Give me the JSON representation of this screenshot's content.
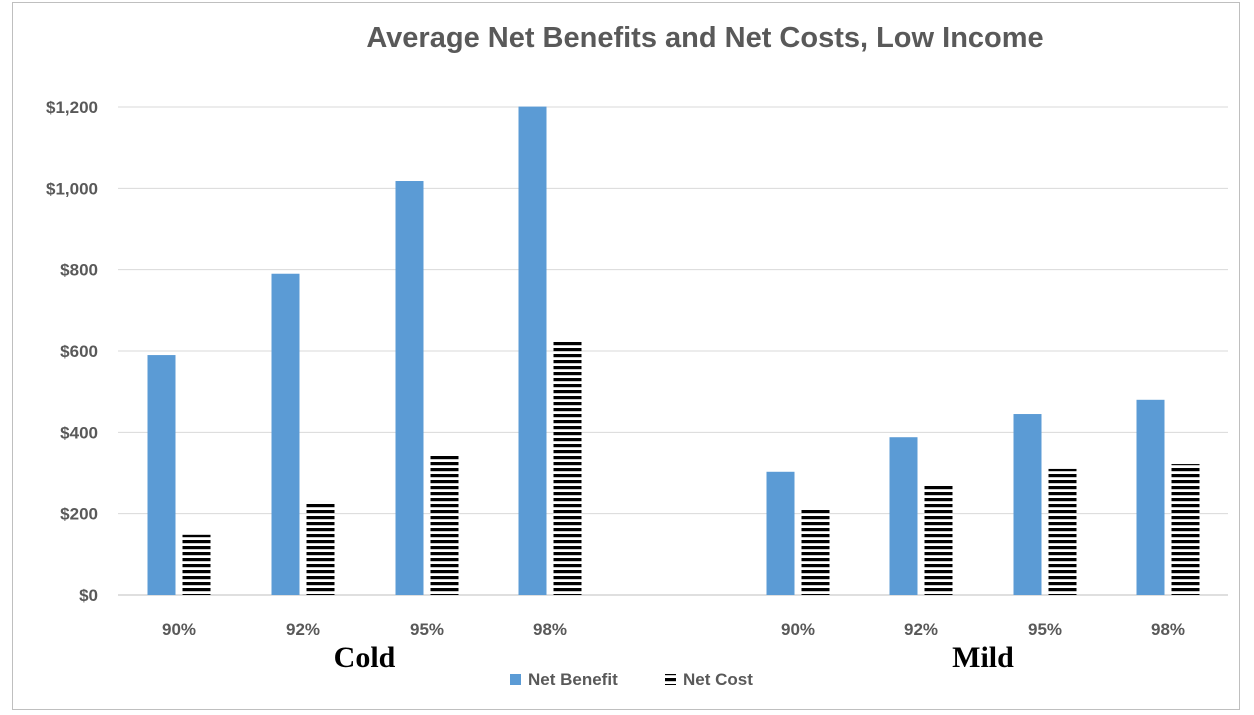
{
  "chart_data": {
    "type": "bar",
    "title": "Average Net Benefits and Net Costs, Low Income",
    "xlabel": "",
    "ylabel": "",
    "ylim": [
      0,
      1200
    ],
    "yticks": [
      0,
      200,
      400,
      600,
      800,
      1000,
      1200
    ],
    "ytick_labels": [
      "$0",
      "$200",
      "$400",
      "$600",
      "$800",
      "$1,000",
      "$1,200"
    ],
    "grid": true,
    "legend_position": "bottom",
    "groups": [
      {
        "name": "Cold",
        "categories": [
          "90%",
          "92%",
          "95%",
          "98%"
        ]
      },
      {
        "name": "Mild",
        "categories": [
          "90%",
          "92%",
          "95%",
          "98%"
        ]
      }
    ],
    "series": [
      {
        "name": "Net Benefit",
        "style": "solid",
        "color": "#5b9bd5",
        "values": [
          590,
          790,
          1018,
          1201,
          303,
          388,
          445,
          480
        ]
      },
      {
        "name": "Net Cost",
        "style": "horizontal-stripes",
        "color": "#000000",
        "values": [
          148,
          230,
          348,
          624,
          210,
          270,
          310,
          322
        ]
      }
    ]
  }
}
